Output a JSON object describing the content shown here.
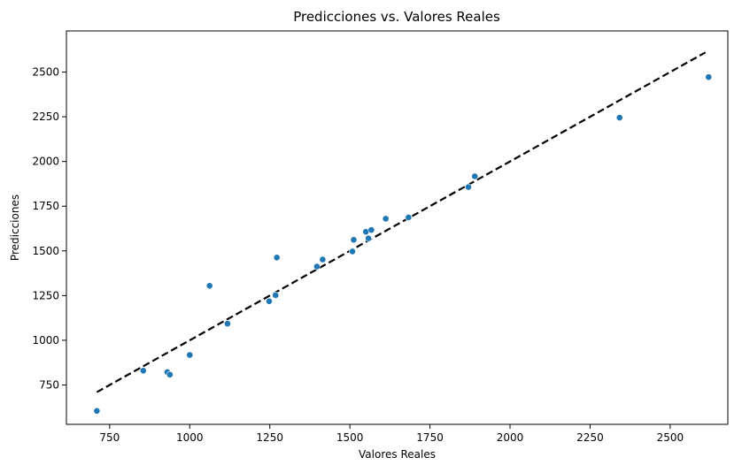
{
  "chart_data": {
    "type": "scatter",
    "title": "Predicciones vs. Valores Reales",
    "xlabel": "Valores Reales",
    "ylabel": "Predicciones",
    "xlim": [
      615,
      2680
    ],
    "ylim": [
      530,
      2730
    ],
    "xticks": [
      750,
      1000,
      1250,
      1500,
      1750,
      2000,
      2250,
      2500
    ],
    "yticks": [
      750,
      1000,
      1250,
      1500,
      1750,
      2000,
      2250,
      2500
    ],
    "grid": false,
    "points": [
      {
        "x": 710,
        "y": 605
      },
      {
        "x": 855,
        "y": 830
      },
      {
        "x": 930,
        "y": 822
      },
      {
        "x": 938,
        "y": 808
      },
      {
        "x": 1000,
        "y": 918
      },
      {
        "x": 1062,
        "y": 1305
      },
      {
        "x": 1118,
        "y": 1093
      },
      {
        "x": 1248,
        "y": 1218
      },
      {
        "x": 1268,
        "y": 1252
      },
      {
        "x": 1272,
        "y": 1463
      },
      {
        "x": 1397,
        "y": 1412
      },
      {
        "x": 1415,
        "y": 1452
      },
      {
        "x": 1508,
        "y": 1497
      },
      {
        "x": 1512,
        "y": 1562
      },
      {
        "x": 1550,
        "y": 1607
      },
      {
        "x": 1558,
        "y": 1570
      },
      {
        "x": 1567,
        "y": 1617
      },
      {
        "x": 1612,
        "y": 1680
      },
      {
        "x": 1683,
        "y": 1687
      },
      {
        "x": 1870,
        "y": 1857
      },
      {
        "x": 1890,
        "y": 1917
      },
      {
        "x": 2342,
        "y": 2245
      },
      {
        "x": 2620,
        "y": 2472
      }
    ],
    "reference_line": {
      "style": "dashed",
      "color": "#000000",
      "x": [
        710,
        2610
      ],
      "y": [
        710,
        2610
      ]
    },
    "point_color": "#1f77b4"
  }
}
